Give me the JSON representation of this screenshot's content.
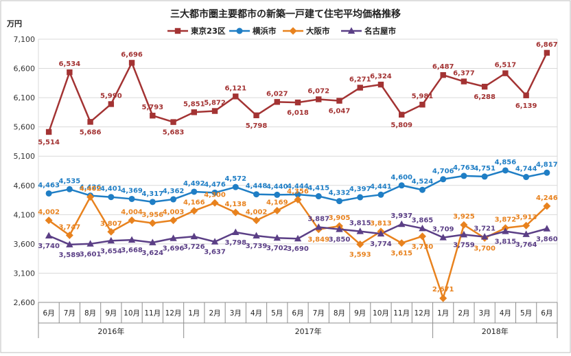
{
  "chart_data": {
    "type": "line",
    "title": "三大都市圏主要都市の新築一戸建て住宅平均価格推移",
    "unit_label": "万円",
    "ylim": [
      2600,
      7100
    ],
    "yticks": [
      2600,
      3100,
      3600,
      4100,
      4600,
      5100,
      5600,
      6100,
      6600,
      7100
    ],
    "grid": true,
    "legend_position": "top",
    "categories": [
      "6月",
      "7月",
      "8月",
      "9月",
      "10月",
      "11月",
      "12月",
      "1月",
      "2月",
      "3月",
      "4月",
      "5月",
      "6月",
      "7月",
      "8月",
      "9月",
      "10月",
      "11月",
      "12月",
      "1月",
      "2月",
      "3月",
      "4月",
      "5月",
      "6月"
    ],
    "year_groups": [
      {
        "label": "2016年",
        "start": 0,
        "end": 6
      },
      {
        "label": "2017年",
        "start": 7,
        "end": 18
      },
      {
        "label": "2018年",
        "start": 19,
        "end": 24
      }
    ],
    "series": [
      {
        "name": "東京23区",
        "color": "#a33333",
        "marker": "square",
        "values": [
          5514,
          6534,
          5686,
          5990,
          6696,
          5793,
          5683,
          5851,
          5872,
          6121,
          5798,
          6027,
          6018,
          6072,
          6047,
          6271,
          6324,
          5809,
          5981,
          6487,
          6377,
          6288,
          6517,
          6139,
          6867
        ]
      },
      {
        "name": "横浜市",
        "color": "#1f7ec5",
        "marker": "circle",
        "values": [
          4463,
          4535,
          4426,
          4401,
          4369,
          4317,
          4362,
          4492,
          4476,
          4572,
          4448,
          4440,
          4444,
          4415,
          4332,
          4397,
          4441,
          4600,
          4524,
          4706,
          4763,
          4751,
          4856,
          4744,
          4817
        ]
      },
      {
        "name": "大阪市",
        "color": "#e8821e",
        "marker": "diamond",
        "values": [
          4002,
          3747,
          4402,
          3807,
          4004,
          3956,
          4003,
          4166,
          4300,
          4138,
          4002,
          4169,
          4356,
          3849,
          3905,
          3593,
          3813,
          3615,
          3730,
          2671,
          3925,
          3700,
          3872,
          3913,
          4246
        ]
      },
      {
        "name": "名古屋市",
        "color": "#5b3f86",
        "marker": "triangle",
        "values": [
          3740,
          3589,
          3601,
          3654,
          3668,
          3624,
          3696,
          3726,
          3637,
          3798,
          3739,
          3702,
          3690,
          3887,
          3850,
          3815,
          3774,
          3937,
          3865,
          3709,
          3759,
          3721,
          3815,
          3764,
          3860
        ]
      }
    ]
  }
}
